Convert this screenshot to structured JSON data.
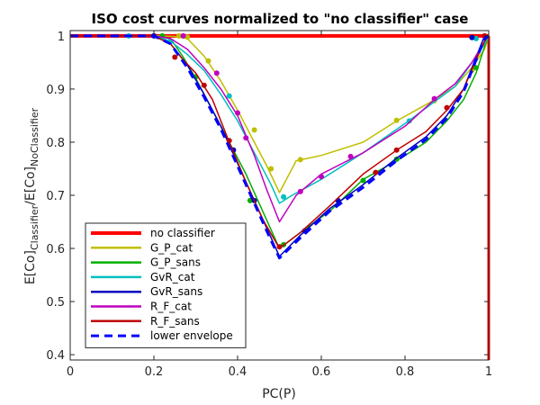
{
  "chart_data": {
    "type": "line",
    "title": "ISO cost curves normalized to \"no classifier\" case",
    "xlabel": "PC(P)",
    "ylabel": {
      "main": "E[Co]",
      "sub1": "Classifier",
      "mid": "/E[Co]",
      "sub2": "NoClassifier"
    },
    "xlim": [
      0,
      1
    ],
    "ylim": [
      0.39,
      1.01
    ],
    "x_ticks": [
      0,
      0.2,
      0.4,
      0.6,
      0.8,
      1
    ],
    "x_tick_labels": [
      "0",
      "0.2",
      "0.4",
      "0.6",
      "0.8",
      "1"
    ],
    "y_ticks": [
      0.4,
      0.5,
      0.6,
      0.7,
      0.8,
      0.9,
      1
    ],
    "y_tick_labels": [
      "0.4",
      "0.5",
      "0.6",
      "0.7",
      "0.8",
      "0.9",
      "1"
    ],
    "grid": false,
    "legend_position": "bottom-left",
    "series": [
      {
        "name": "no classifier",
        "color": "#ff0000",
        "style": "solid-thick",
        "points": [
          [
            0,
            1
          ],
          [
            1,
            1
          ]
        ],
        "markers": [],
        "vertical_at_x": 1
      },
      {
        "name": "G_P_cat",
        "color": "#bfbf00",
        "style": "solid",
        "points": [
          [
            0,
            1
          ],
          [
            0.18,
            1.0
          ],
          [
            0.22,
            1.0
          ],
          [
            0.25,
            0.999
          ],
          [
            0.28,
            0.995
          ],
          [
            0.32,
            0.962
          ],
          [
            0.36,
            0.915
          ],
          [
            0.4,
            0.86
          ],
          [
            0.44,
            0.8
          ],
          [
            0.47,
            0.755
          ],
          [
            0.5,
            0.705
          ],
          [
            0.54,
            0.765
          ],
          [
            0.6,
            0.775
          ],
          [
            0.7,
            0.8
          ],
          [
            0.78,
            0.84
          ],
          [
            0.86,
            0.875
          ],
          [
            0.92,
            0.905
          ],
          [
            0.96,
            0.94
          ],
          [
            0.99,
            0.975
          ],
          [
            1.0,
            1.0
          ]
        ],
        "markers": [
          [
            0.2,
            1.0
          ],
          [
            0.26,
            1.0
          ],
          [
            0.28,
            0.998
          ],
          [
            0.33,
            0.953
          ],
          [
            0.44,
            0.823
          ],
          [
            0.48,
            0.75
          ],
          [
            0.55,
            0.767
          ],
          [
            0.78,
            0.841
          ],
          [
            0.87,
            0.878
          ],
          [
            0.96,
            0.935
          ]
        ]
      },
      {
        "name": "G_P_sans",
        "color": "#00b000",
        "style": "solid",
        "points": [
          [
            0,
            1
          ],
          [
            0.2,
            1.0
          ],
          [
            0.24,
            0.995
          ],
          [
            0.27,
            0.96
          ],
          [
            0.3,
            0.92
          ],
          [
            0.34,
            0.86
          ],
          [
            0.38,
            0.8
          ],
          [
            0.42,
            0.74
          ],
          [
            0.46,
            0.67
          ],
          [
            0.5,
            0.6
          ],
          [
            0.55,
            0.63
          ],
          [
            0.62,
            0.67
          ],
          [
            0.7,
            0.73
          ],
          [
            0.78,
            0.765
          ],
          [
            0.85,
            0.8
          ],
          [
            0.9,
            0.84
          ],
          [
            0.94,
            0.88
          ],
          [
            0.97,
            0.93
          ],
          [
            0.99,
            0.98
          ],
          [
            1.0,
            1.0
          ]
        ],
        "markers": [
          [
            0.22,
            1.0
          ],
          [
            0.3,
            0.923
          ],
          [
            0.43,
            0.69
          ],
          [
            0.51,
            0.607
          ],
          [
            0.7,
            0.728
          ],
          [
            0.78,
            0.768
          ],
          [
            0.97,
            0.94
          ]
        ]
      },
      {
        "name": "GvR_cat",
        "color": "#00bfbf",
        "style": "solid",
        "points": [
          [
            0,
            1
          ],
          [
            0.14,
            1.0
          ],
          [
            0.2,
            1.0
          ],
          [
            0.24,
            0.99
          ],
          [
            0.28,
            0.965
          ],
          [
            0.32,
            0.935
          ],
          [
            0.36,
            0.89
          ],
          [
            0.4,
            0.84
          ],
          [
            0.44,
            0.78
          ],
          [
            0.48,
            0.72
          ],
          [
            0.5,
            0.685
          ],
          [
            0.53,
            0.7
          ],
          [
            0.6,
            0.73
          ],
          [
            0.7,
            0.78
          ],
          [
            0.8,
            0.835
          ],
          [
            0.86,
            0.87
          ],
          [
            0.92,
            0.905
          ],
          [
            0.96,
            0.95
          ],
          [
            0.99,
            0.985
          ],
          [
            1.0,
            1.0
          ]
        ],
        "markers": [
          [
            0.14,
            1.0
          ],
          [
            0.24,
            0.99
          ],
          [
            0.38,
            0.887
          ],
          [
            0.51,
            0.697
          ],
          [
            0.81,
            0.84
          ],
          [
            0.97,
            0.995
          ]
        ]
      },
      {
        "name": "GvR_sans",
        "color": "#0000bf",
        "style": "solid",
        "points": [
          [
            0,
            1
          ],
          [
            0.2,
            1.0
          ],
          [
            0.24,
            0.985
          ],
          [
            0.28,
            0.945
          ],
          [
            0.32,
            0.89
          ],
          [
            0.36,
            0.83
          ],
          [
            0.4,
            0.76
          ],
          [
            0.44,
            0.69
          ],
          [
            0.48,
            0.62
          ],
          [
            0.5,
            0.585
          ],
          [
            0.55,
            0.625
          ],
          [
            0.62,
            0.675
          ],
          [
            0.7,
            0.72
          ],
          [
            0.78,
            0.77
          ],
          [
            0.85,
            0.81
          ],
          [
            0.9,
            0.85
          ],
          [
            0.94,
            0.9
          ],
          [
            0.97,
            0.96
          ],
          [
            0.99,
            1.0
          ],
          [
            1.0,
            1.0
          ]
        ],
        "markers": [
          [
            0.2,
            1.0
          ],
          [
            0.39,
            0.785
          ],
          [
            0.44,
            0.69
          ],
          [
            0.56,
            0.633
          ],
          [
            0.64,
            0.69
          ],
          [
            0.96,
            0.997
          ]
        ]
      },
      {
        "name": "R_F_cat",
        "color": "#bf00bf",
        "style": "solid",
        "points": [
          [
            0,
            1
          ],
          [
            0.2,
            1.0
          ],
          [
            0.24,
            0.995
          ],
          [
            0.28,
            0.975
          ],
          [
            0.32,
            0.94
          ],
          [
            0.36,
            0.9
          ],
          [
            0.4,
            0.85
          ],
          [
            0.44,
            0.775
          ],
          [
            0.47,
            0.71
          ],
          [
            0.5,
            0.65
          ],
          [
            0.54,
            0.7
          ],
          [
            0.6,
            0.74
          ],
          [
            0.7,
            0.78
          ],
          [
            0.8,
            0.83
          ],
          [
            0.87,
            0.88
          ],
          [
            0.92,
            0.91
          ],
          [
            0.96,
            0.95
          ],
          [
            0.99,
            0.99
          ],
          [
            1.0,
            1.0
          ]
        ],
        "markers": [
          [
            0.27,
            1.0
          ],
          [
            0.35,
            0.93
          ],
          [
            0.4,
            0.855
          ],
          [
            0.42,
            0.808
          ],
          [
            0.55,
            0.707
          ],
          [
            0.6,
            0.735
          ],
          [
            0.67,
            0.773
          ],
          [
            0.87,
            0.882
          ],
          [
            0.99,
            1.0
          ]
        ]
      },
      {
        "name": "R_F_sans",
        "color": "#bf0000",
        "style": "solid",
        "points": [
          [
            0,
            1
          ],
          [
            0.2,
            1.0
          ],
          [
            0.24,
            0.985
          ],
          [
            0.27,
            0.955
          ],
          [
            0.3,
            0.93
          ],
          [
            0.34,
            0.88
          ],
          [
            0.38,
            0.8
          ],
          [
            0.42,
            0.725
          ],
          [
            0.46,
            0.655
          ],
          [
            0.5,
            0.6
          ],
          [
            0.55,
            0.63
          ],
          [
            0.62,
            0.68
          ],
          [
            0.7,
            0.74
          ],
          [
            0.78,
            0.785
          ],
          [
            0.85,
            0.82
          ],
          [
            0.9,
            0.86
          ],
          [
            0.94,
            0.9
          ],
          [
            0.97,
            0.955
          ],
          [
            0.99,
            0.99
          ],
          [
            1.0,
            1.0
          ]
        ],
        "markers": [
          [
            0.25,
            0.96
          ],
          [
            0.32,
            0.907
          ],
          [
            0.38,
            0.803
          ],
          [
            0.5,
            0.603
          ],
          [
            0.73,
            0.743
          ],
          [
            0.78,
            0.785
          ],
          [
            0.9,
            0.865
          ],
          [
            0.99,
            1.0
          ]
        ]
      },
      {
        "name": "lower envelope",
        "color": "#0000ff",
        "style": "dashed",
        "points": [
          [
            0,
            1
          ],
          [
            0.2,
            1.0
          ],
          [
            0.24,
            0.985
          ],
          [
            0.28,
            0.94
          ],
          [
            0.32,
            0.885
          ],
          [
            0.36,
            0.825
          ],
          [
            0.4,
            0.755
          ],
          [
            0.44,
            0.685
          ],
          [
            0.48,
            0.615
          ],
          [
            0.5,
            0.582
          ],
          [
            0.55,
            0.62
          ],
          [
            0.62,
            0.67
          ],
          [
            0.7,
            0.715
          ],
          [
            0.78,
            0.765
          ],
          [
            0.85,
            0.805
          ],
          [
            0.9,
            0.845
          ],
          [
            0.94,
            0.895
          ],
          [
            0.97,
            0.955
          ],
          [
            0.99,
            0.995
          ],
          [
            1.0,
            1.0
          ]
        ],
        "markers": []
      }
    ]
  }
}
